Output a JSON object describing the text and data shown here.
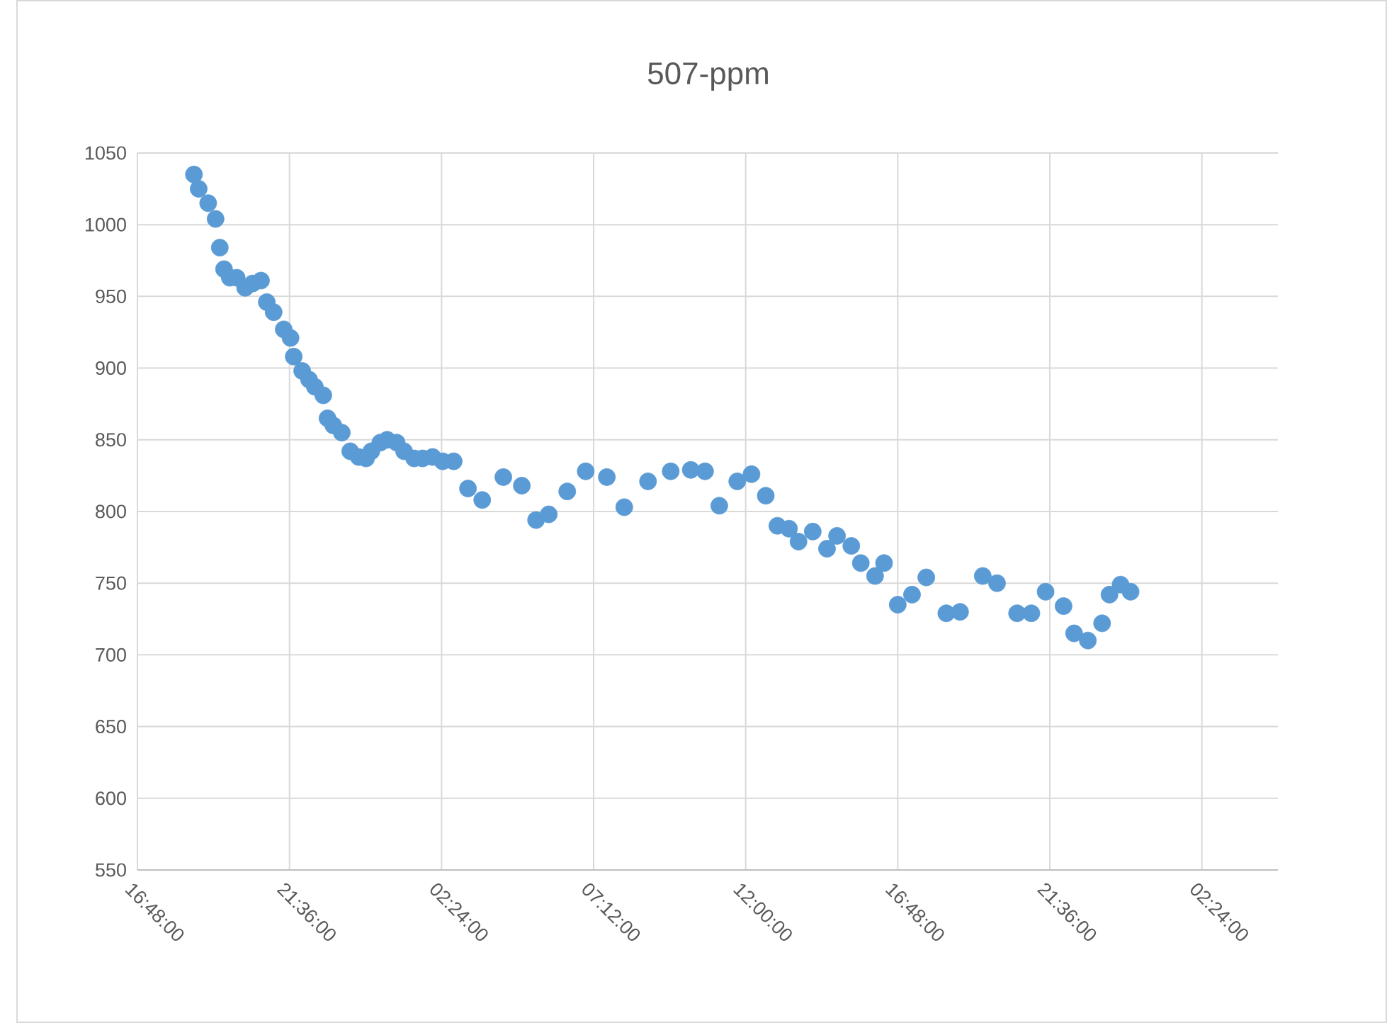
{
  "chart_data": {
    "type": "scatter",
    "title": "507-ppm",
    "grid": true,
    "marker": "circle",
    "xlim": [
      "2000-01-01T16:48",
      "2000-01-03T04:48"
    ],
    "xticks": [
      {
        "value": "2000-01-01T16:48",
        "label": "16:48:00"
      },
      {
        "value": "2000-01-01T21:36",
        "label": "21:36:00"
      },
      {
        "value": "2000-01-02T02:24",
        "label": "02:24:00"
      },
      {
        "value": "2000-01-02T07:12",
        "label": "07:12:00"
      },
      {
        "value": "2000-01-02T12:00",
        "label": "12:00:00"
      },
      {
        "value": "2000-01-02T16:48",
        "label": "16:48:00"
      },
      {
        "value": "2000-01-02T21:36",
        "label": "21:36:00"
      },
      {
        "value": "2000-01-03T02:24",
        "label": "02:24:00"
      }
    ],
    "ylim": [
      550,
      1050
    ],
    "yticks": [
      550,
      600,
      650,
      700,
      750,
      800,
      850,
      900,
      950,
      1000,
      1050
    ],
    "series": [
      {
        "color": "#5b9bd5",
        "x": [
          "2000-01-01T18:35",
          "2000-01-01T18:44",
          "2000-01-01T19:02",
          "2000-01-01T19:16",
          "2000-01-01T19:24",
          "2000-01-01T19:32",
          "2000-01-01T19:43",
          "2000-01-01T19:56",
          "2000-01-01T20:12",
          "2000-01-01T20:26",
          "2000-01-01T20:42",
          "2000-01-01T20:53",
          "2000-01-01T21:06",
          "2000-01-01T21:25",
          "2000-01-01T21:38",
          "2000-01-01T21:44",
          "2000-01-01T22:00",
          "2000-01-01T22:13",
          "2000-01-01T22:24",
          "2000-01-01T22:40",
          "2000-01-01T22:48",
          "2000-01-01T22:59",
          "2000-01-01T23:15",
          "2000-01-01T23:31",
          "2000-01-01T23:47",
          "2000-01-02T00:01",
          "2000-01-02T00:11",
          "2000-01-02T00:28",
          "2000-01-02T00:41",
          "2000-01-02T00:59",
          "2000-01-02T01:13",
          "2000-01-02T01:32",
          "2000-01-02T01:48",
          "2000-01-02T02:07",
          "2000-01-02T02:26",
          "2000-01-02T02:47",
          "2000-01-02T03:14",
          "2000-01-02T03:41",
          "2000-01-02T04:21",
          "2000-01-02T04:56",
          "2000-01-02T05:23",
          "2000-01-02T05:47",
          "2000-01-02T06:22",
          "2000-01-02T06:57",
          "2000-01-02T07:37",
          "2000-01-02T08:10",
          "2000-01-02T08:55",
          "2000-01-02T09:38",
          "2000-01-02T10:16",
          "2000-01-02T10:43",
          "2000-01-02T11:10",
          "2000-01-02T11:44",
          "2000-01-02T12:11",
          "2000-01-02T12:38",
          "2000-01-02T13:00",
          "2000-01-02T13:22",
          "2000-01-02T13:40",
          "2000-01-02T14:07",
          "2000-01-02T14:34",
          "2000-01-02T14:53",
          "2000-01-02T15:20",
          "2000-01-02T15:38",
          "2000-01-02T16:05",
          "2000-01-02T16:22",
          "2000-01-02T16:48",
          "2000-01-02T17:15",
          "2000-01-02T17:42",
          "2000-01-02T18:20",
          "2000-01-02T18:46",
          "2000-01-02T19:29",
          "2000-01-02T19:56",
          "2000-01-02T20:34",
          "2000-01-02T21:01",
          "2000-01-02T21:28",
          "2000-01-02T22:02",
          "2000-01-02T22:22",
          "2000-01-02T22:48",
          "2000-01-02T23:15",
          "2000-01-02T23:29",
          "2000-01-02T23:50",
          "2000-01-03T00:09"
        ],
        "values": [
          1035,
          1025,
          1015,
          1004,
          984,
          969,
          963,
          963,
          956,
          959,
          961,
          946,
          939,
          927,
          921,
          908,
          898,
          892,
          887,
          881,
          865,
          860,
          855,
          842,
          838,
          837,
          842,
          848,
          850,
          848,
          842,
          837,
          837,
          838,
          835,
          835,
          816,
          808,
          824,
          818,
          794,
          798,
          814,
          828,
          824,
          803,
          821,
          828,
          829,
          828,
          804,
          821,
          826,
          811,
          790,
          788,
          779,
          786,
          774,
          783,
          776,
          764,
          755,
          764,
          735,
          742,
          754,
          729,
          730,
          755,
          750,
          729,
          729,
          744,
          734,
          715,
          710,
          722,
          742,
          749,
          744
        ]
      }
    ]
  }
}
